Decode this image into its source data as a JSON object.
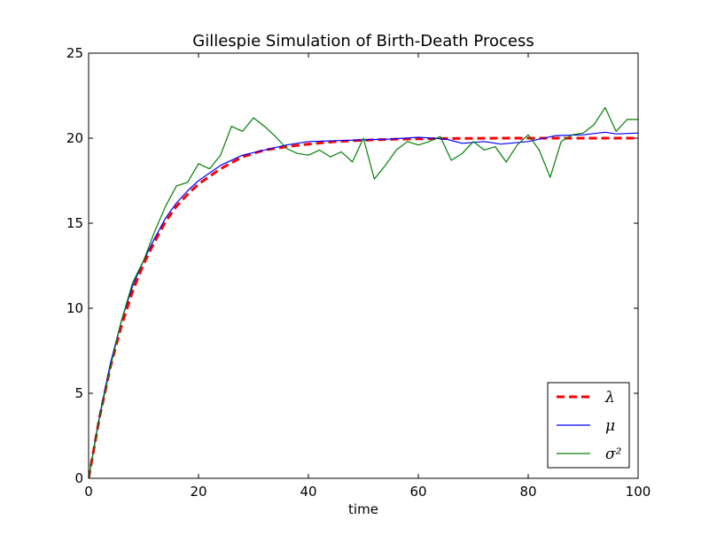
{
  "chart_data": {
    "type": "line",
    "title": "Gillespie Simulation of Birth-Death Process",
    "xlabel": "time",
    "ylabel": "",
    "xlim": [
      0,
      100
    ],
    "ylim": [
      0,
      25
    ],
    "xticks": [
      0,
      20,
      40,
      60,
      80,
      100
    ],
    "yticks": [
      0,
      5,
      10,
      15,
      20,
      25
    ],
    "grid": false,
    "legend_position": "lower-right",
    "series": [
      {
        "name": "λ",
        "color": "#ff0000",
        "style": "dashed",
        "x": [
          0,
          2,
          4,
          6,
          8,
          10,
          12,
          14,
          16,
          18,
          20,
          24,
          28,
          32,
          36,
          40,
          45,
          50,
          55,
          60,
          65,
          70,
          75,
          80,
          85,
          90,
          95,
          100
        ],
        "y": [
          0,
          3.6,
          6.6,
          9.0,
          11.0,
          12.6,
          13.9,
          15.1,
          16.0,
          16.7,
          17.3,
          18.2,
          18.9,
          19.3,
          19.5,
          19.65,
          19.8,
          19.88,
          19.93,
          19.96,
          19.98,
          19.99,
          20.0,
          20.0,
          20.0,
          20.0,
          20.0,
          20.0
        ]
      },
      {
        "name": "μ",
        "color": "#0000ff",
        "style": "solid",
        "x": [
          0,
          2,
          4,
          6,
          8,
          10,
          12,
          14,
          16,
          18,
          20,
          24,
          28,
          32,
          36,
          40,
          45,
          50,
          55,
          60,
          65,
          68,
          72,
          75,
          80,
          85,
          90,
          94,
          96,
          100
        ],
        "y": [
          0,
          3.7,
          6.8,
          9.3,
          11.3,
          12.8,
          14.1,
          15.3,
          16.2,
          16.9,
          17.5,
          18.4,
          19.0,
          19.3,
          19.6,
          19.8,
          19.85,
          19.9,
          19.95,
          20.05,
          19.95,
          19.7,
          19.8,
          19.65,
          19.8,
          20.15,
          20.2,
          20.35,
          20.25,
          20.3
        ]
      },
      {
        "name": "σ²",
        "color": "#008000",
        "style": "solid",
        "x": [
          0,
          2,
          4,
          6,
          8,
          10,
          12,
          14,
          16,
          18,
          20,
          22,
          24,
          26,
          28,
          30,
          32,
          34,
          36,
          38,
          40,
          42,
          44,
          46,
          48,
          50,
          52,
          54,
          56,
          58,
          60,
          62,
          64,
          66,
          68,
          70,
          72,
          74,
          76,
          78,
          80,
          82,
          84,
          86,
          88,
          90,
          92,
          94,
          96,
          98,
          100
        ],
        "y": [
          0,
          3.6,
          6.6,
          9.3,
          11.5,
          12.8,
          14.5,
          16.0,
          17.2,
          17.4,
          18.5,
          18.2,
          19.0,
          20.7,
          20.4,
          21.2,
          20.7,
          20.1,
          19.4,
          19.1,
          19.0,
          19.3,
          18.9,
          19.2,
          18.6,
          20.0,
          17.6,
          18.4,
          19.3,
          19.8,
          19.6,
          19.8,
          20.1,
          18.7,
          19.1,
          19.8,
          19.3,
          19.5,
          18.6,
          19.6,
          20.2,
          19.3,
          17.7,
          19.8,
          20.2,
          20.3,
          20.8,
          21.8,
          20.4,
          21.1,
          21.1
        ]
      }
    ]
  }
}
